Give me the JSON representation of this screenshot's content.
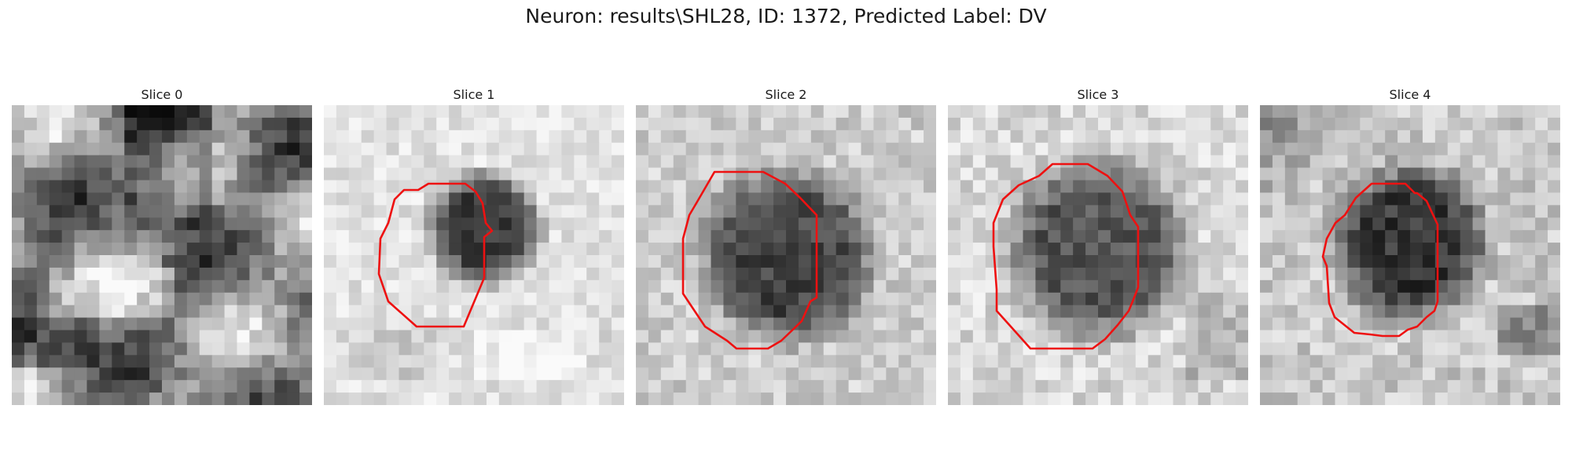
{
  "figure": {
    "title": "Neuron: results\\SHL28, ID: 1372, Predicted Label: DV"
  },
  "colors": {
    "contour": "#ee1111",
    "background": "#ffffff"
  },
  "panels": [
    {
      "title": "Slice 0",
      "has_contour": false
    },
    {
      "title": "Slice 1",
      "has_contour": true
    },
    {
      "title": "Slice 2",
      "has_contour": true
    },
    {
      "title": "Slice 3",
      "has_contour": true
    },
    {
      "title": "Slice 4",
      "has_contour": true
    }
  ]
}
